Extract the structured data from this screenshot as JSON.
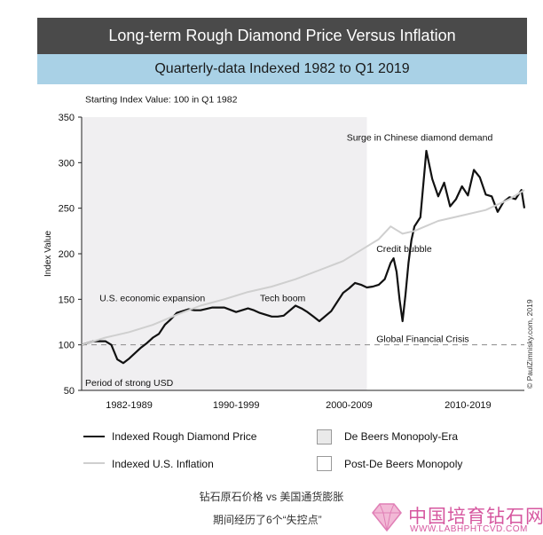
{
  "header": {
    "title": "Long-term Rough Diamond Price Versus Inflation",
    "subtitle": "Quarterly-data Indexed 1982 to Q1 2019"
  },
  "chart_data": {
    "type": "line",
    "note": "Starting Index Value: 100 in Q1 1982",
    "ylabel": "Index Value",
    "ylim": [
      50,
      350
    ],
    "yticks": [
      50,
      100,
      150,
      200,
      250,
      300,
      350
    ],
    "xlim": [
      1982,
      2019.25
    ],
    "reference_line": 100,
    "shaded_region": {
      "from": 1982,
      "to": 2006,
      "color": "#f0eff1"
    },
    "decade_labels": [
      {
        "label": "1982-1989",
        "x": 1986
      },
      {
        "label": "1990-1999",
        "x": 1995
      },
      {
        "label": "2000-2009",
        "x": 2004.5
      },
      {
        "label": "2010-2019",
        "x": 2014.5
      }
    ],
    "annotations": [
      {
        "text": "Starting Index Value: 100 in Q1 1982",
        "x": 1982.3,
        "y": 370
      },
      {
        "text": "Surge in Chinese diamond demand",
        "x": 2004.3,
        "y": 328
      },
      {
        "text": "Credit bubble",
        "x": 2006.8,
        "y": 206
      },
      {
        "text": "U.S. economic expansion",
        "x": 1983.5,
        "y": 152
      },
      {
        "text": "Tech boom",
        "x": 1997.0,
        "y": 152
      },
      {
        "text": "Global Financial Crisis",
        "x": 2006.8,
        "y": 107
      },
      {
        "text": "Period of strong USD",
        "x": 1982.3,
        "y": 59
      }
    ],
    "series": [
      {
        "name": "Indexed Rough Diamond Price",
        "color": "#111111",
        "x": [
          1982.0,
          1983.0,
          1984.0,
          1984.5,
          1985.0,
          1985.5,
          1986.0,
          1987.0,
          1987.5,
          1988.0,
          1988.5,
          1989.0,
          1989.5,
          1990.0,
          1991.0,
          1991.5,
          1992.0,
          1993.0,
          1994.0,
          1995.0,
          1996.0,
          1996.5,
          1997.0,
          1998.0,
          1998.5,
          1999.0,
          2000.0,
          2000.5,
          2001.0,
          2001.5,
          2002.0,
          2003.0,
          2004.0,
          2004.5,
          2005.0,
          2005.5,
          2006.0,
          2006.5,
          2007.0,
          2007.5,
          2008.0,
          2008.25,
          2008.5,
          2008.75,
          2009.0,
          2009.25,
          2009.5,
          2009.75,
          2010.0,
          2010.5,
          2011.0,
          2011.5,
          2012.0,
          2012.5,
          2013.0,
          2013.5,
          2014.0,
          2014.5,
          2015.0,
          2015.5,
          2016.0,
          2016.5,
          2017.0,
          2017.5,
          2018.0,
          2018.5,
          2019.0,
          2019.25
        ],
        "y": [
          100,
          104,
          104,
          100,
          84,
          80,
          85,
          97,
          102,
          108,
          112,
          122,
          128,
          135,
          139,
          138,
          138,
          141,
          141,
          136,
          140,
          138,
          135,
          131,
          131,
          132,
          143,
          140,
          136,
          131,
          126,
          137,
          157,
          162,
          168,
          166,
          163,
          164,
          166,
          172,
          190,
          195,
          180,
          150,
          126,
          155,
          190,
          215,
          230,
          240,
          313,
          282,
          263,
          278,
          252,
          260,
          274,
          264,
          292,
          284,
          265,
          263,
          246,
          257,
          262,
          260,
          270,
          250
        ]
      },
      {
        "name": "Indexed U.S. Inflation",
        "color": "#cfcfcf",
        "x": [
          1982,
          1984,
          1986,
          1988,
          1990,
          1992,
          1994,
          1996,
          1998,
          2000,
          2002,
          2004,
          2006,
          2007,
          2008,
          2008.5,
          2009,
          2010,
          2012,
          2014,
          2016,
          2018,
          2019.25
        ],
        "y": [
          100,
          108,
          114,
          122,
          133,
          143,
          150,
          158,
          164,
          172,
          182,
          192,
          208,
          216,
          230,
          226,
          222,
          225,
          236,
          242,
          248,
          260,
          270
        ]
      }
    ],
    "legend": [
      {
        "label": "Indexed Rough Diamond Price",
        "kind": "line",
        "color": "#111111"
      },
      {
        "label": "Indexed U.S. Inflation",
        "kind": "line",
        "color": "#cfcfcf"
      },
      {
        "label": "De Beers Monopoly-Era",
        "kind": "box",
        "color": "#f0eff1"
      },
      {
        "label": "Post-De Beers Monopoly",
        "kind": "box",
        "color": "#ffffff"
      }
    ],
    "credit": "© PaulZimnisky.com, 2019"
  },
  "caption": {
    "line1": "钻石原石价格 vs 美国通货膨胀",
    "line2": "期间经历了6个“失控点”"
  },
  "watermark": {
    "title": "中国培育钻石网",
    "url": "WWW.LABHPHTCVD.COM"
  }
}
